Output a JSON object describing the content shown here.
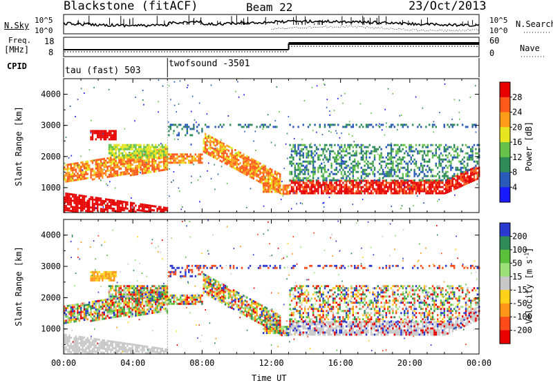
{
  "header": {
    "station": "Blackstone (fitACF)",
    "beam": "Beam 22",
    "date": "23/Oct/2013"
  },
  "sky_panel": {
    "left_label": "N.Sky",
    "right_label": "N.Search",
    "tick_top_left": "10^5",
    "tick_bottom_left": "10^0",
    "tick_top_right": "10^5",
    "tick_bottom_right": "10^0"
  },
  "freq_panel": {
    "label_line1": "Freq.",
    "label_line2": "[MHz]",
    "tick_top": "18",
    "tick_bottom": "8",
    "right_label": "Nave",
    "right_tick_top": "60",
    "right_tick_bottom": "0"
  },
  "cpid_panel": {
    "label": "CPID",
    "segments": [
      "tau (fast) 503",
      "twofsound -3501"
    ]
  },
  "chart_data": [
    {
      "type": "heatmap",
      "name": "power",
      "ylabel": "Slant Range [km]",
      "xlabel": "Time UT",
      "ylim": [
        200,
        4500
      ],
      "xlim_hours": [
        0,
        24
      ],
      "yticks": [
        "1000",
        "2000",
        "3000",
        "4000"
      ],
      "colorbar": {
        "label": "Power [dB]",
        "ticks": [
          "4",
          "8",
          "12",
          "16",
          "20",
          "24",
          "28"
        ],
        "colors": [
          "#1a1aff",
          "#2a5ab8",
          "#2e8b57",
          "#66c24a",
          "#e6e620",
          "#ff9d1a",
          "#ff5a1a",
          "#e60000"
        ]
      }
    },
    {
      "type": "heatmap",
      "name": "velocity",
      "ylabel": "Slant Range [km]",
      "xlabel": "Time UT",
      "ylim": [
        200,
        4500
      ],
      "xlim_hours": [
        0,
        24
      ],
      "yticks": [
        "1000",
        "2000",
        "3000",
        "4000"
      ],
      "colorbar": {
        "label": "Velocity [m s",
        "label_sup": "-1",
        "label_end": "]",
        "ticks": [
          "200",
          "100",
          "50",
          "15",
          "-15",
          "-50",
          "-100",
          "-200"
        ],
        "colors": [
          "#2a3ad0",
          "#2e8b57",
          "#5abf3a",
          "#9ce07a",
          "#c8c8c8",
          "#ffd21a",
          "#ff961a",
          "#ff4a1a",
          "#e60000"
        ]
      }
    }
  ],
  "time_axis": {
    "label": "Time UT",
    "ticks": [
      "00:00",
      "04:00",
      "08:00",
      "12:00",
      "16:00",
      "20:00",
      "00:00"
    ]
  }
}
